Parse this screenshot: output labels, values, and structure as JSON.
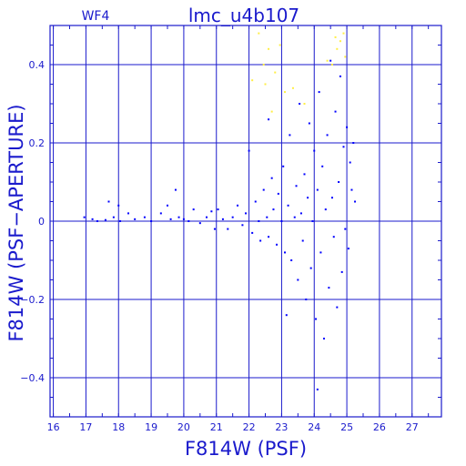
{
  "chart_data": {
    "type": "scatter",
    "title": "lmc_u4b107",
    "subtitle": "WF4",
    "xlabel": "F814W (PSF)",
    "ylabel": "F814W (PSF−APERTURE)",
    "xlim": [
      15.9,
      27.9
    ],
    "ylim": [
      -0.5,
      0.5
    ],
    "xticks": [
      16,
      17,
      18,
      19,
      20,
      21,
      22,
      23,
      24,
      25,
      26,
      27
    ],
    "yticks": [
      -0.4,
      -0.2,
      0,
      0.2,
      0.4
    ],
    "ytick_labels": [
      "−0.4",
      "−0.2",
      "0",
      "0.2",
      "0.4"
    ],
    "grid": true,
    "colors": {
      "main": "#0000ff",
      "flagged": "#ffee44",
      "frame": "#1a1acc"
    },
    "series": [
      {
        "color": "#0000ff",
        "points": [
          [
            16.95,
            0.01
          ],
          [
            17.2,
            0.005
          ],
          [
            17.35,
            0.0
          ],
          [
            17.6,
            0.003
          ],
          [
            17.7,
            0.05
          ],
          [
            17.85,
            0.01
          ],
          [
            18.0,
            0.04
          ],
          [
            18.05,
            0.0
          ],
          [
            18.3,
            0.02
          ],
          [
            18.5,
            0.005
          ],
          [
            18.8,
            0.01
          ],
          [
            19.0,
            0.0
          ],
          [
            19.3,
            0.02
          ],
          [
            19.5,
            0.04
          ],
          [
            19.6,
            0.005
          ],
          [
            19.75,
            0.08
          ],
          [
            19.85,
            0.01
          ],
          [
            20.0,
            0.005
          ],
          [
            20.15,
            0.0
          ],
          [
            20.3,
            0.03
          ],
          [
            20.5,
            -0.005
          ],
          [
            20.7,
            0.01
          ],
          [
            20.85,
            0.025
          ],
          [
            20.95,
            -0.02
          ],
          [
            21.05,
            0.03
          ],
          [
            21.2,
            0.005
          ],
          [
            21.35,
            -0.02
          ],
          [
            21.5,
            0.01
          ],
          [
            21.65,
            0.04
          ],
          [
            21.8,
            -0.01
          ],
          [
            21.9,
            0.02
          ],
          [
            22.0,
            0.18
          ],
          [
            22.1,
            -0.03
          ],
          [
            22.2,
            0.05
          ],
          [
            22.3,
            0.0
          ],
          [
            22.35,
            -0.05
          ],
          [
            22.45,
            0.08
          ],
          [
            22.55,
            0.01
          ],
          [
            22.6,
            -0.04
          ],
          [
            22.7,
            0.11
          ],
          [
            22.75,
            0.03
          ],
          [
            22.85,
            -0.06
          ],
          [
            22.9,
            0.07
          ],
          [
            23.0,
            0.0
          ],
          [
            23.05,
            0.14
          ],
          [
            23.1,
            -0.08
          ],
          [
            23.2,
            0.04
          ],
          [
            23.25,
            0.22
          ],
          [
            23.3,
            -0.1
          ],
          [
            23.4,
            0.01
          ],
          [
            23.45,
            0.09
          ],
          [
            23.5,
            -0.15
          ],
          [
            23.55,
            0.3
          ],
          [
            23.6,
            0.02
          ],
          [
            23.65,
            -0.05
          ],
          [
            23.7,
            0.12
          ],
          [
            23.75,
            -0.2
          ],
          [
            23.8,
            0.06
          ],
          [
            23.85,
            0.25
          ],
          [
            23.9,
            -0.12
          ],
          [
            23.95,
            0.0
          ],
          [
            24.0,
            0.18
          ],
          [
            24.05,
            -0.25
          ],
          [
            24.1,
            0.08
          ],
          [
            24.15,
            0.33
          ],
          [
            24.2,
            -0.08
          ],
          [
            24.25,
            0.14
          ],
          [
            24.3,
            -0.3
          ],
          [
            24.35,
            0.03
          ],
          [
            24.4,
            0.22
          ],
          [
            24.45,
            -0.17
          ],
          [
            24.5,
            0.41
          ],
          [
            24.55,
            0.06
          ],
          [
            24.6,
            -0.04
          ],
          [
            24.65,
            0.28
          ],
          [
            24.7,
            -0.22
          ],
          [
            24.75,
            0.1
          ],
          [
            24.8,
            0.37
          ],
          [
            24.85,
            -0.13
          ],
          [
            24.9,
            0.19
          ],
          [
            24.95,
            -0.02
          ],
          [
            25.0,
            0.24
          ],
          [
            25.05,
            -0.07
          ],
          [
            25.1,
            0.15
          ],
          [
            25.15,
            0.08
          ],
          [
            25.2,
            0.2
          ],
          [
            25.25,
            0.05
          ],
          [
            23.15,
            -0.24
          ],
          [
            22.6,
            0.26
          ],
          [
            24.1,
            -0.43
          ]
        ]
      },
      {
        "color": "#ffee44",
        "points": [
          [
            22.3,
            0.48
          ],
          [
            22.45,
            0.4
          ],
          [
            22.6,
            0.44
          ],
          [
            22.8,
            0.38
          ],
          [
            22.5,
            0.35
          ],
          [
            23.1,
            0.33
          ],
          [
            23.35,
            0.34
          ],
          [
            22.95,
            0.45
          ],
          [
            24.55,
            0.4
          ],
          [
            24.7,
            0.44
          ],
          [
            24.8,
            0.46
          ],
          [
            24.9,
            0.48
          ],
          [
            24.95,
            0.42
          ],
          [
            24.65,
            0.47
          ],
          [
            23.7,
            0.3
          ],
          [
            22.1,
            0.36
          ],
          [
            22.7,
            0.28
          ],
          [
            24.4,
            0.41
          ]
        ]
      }
    ]
  }
}
